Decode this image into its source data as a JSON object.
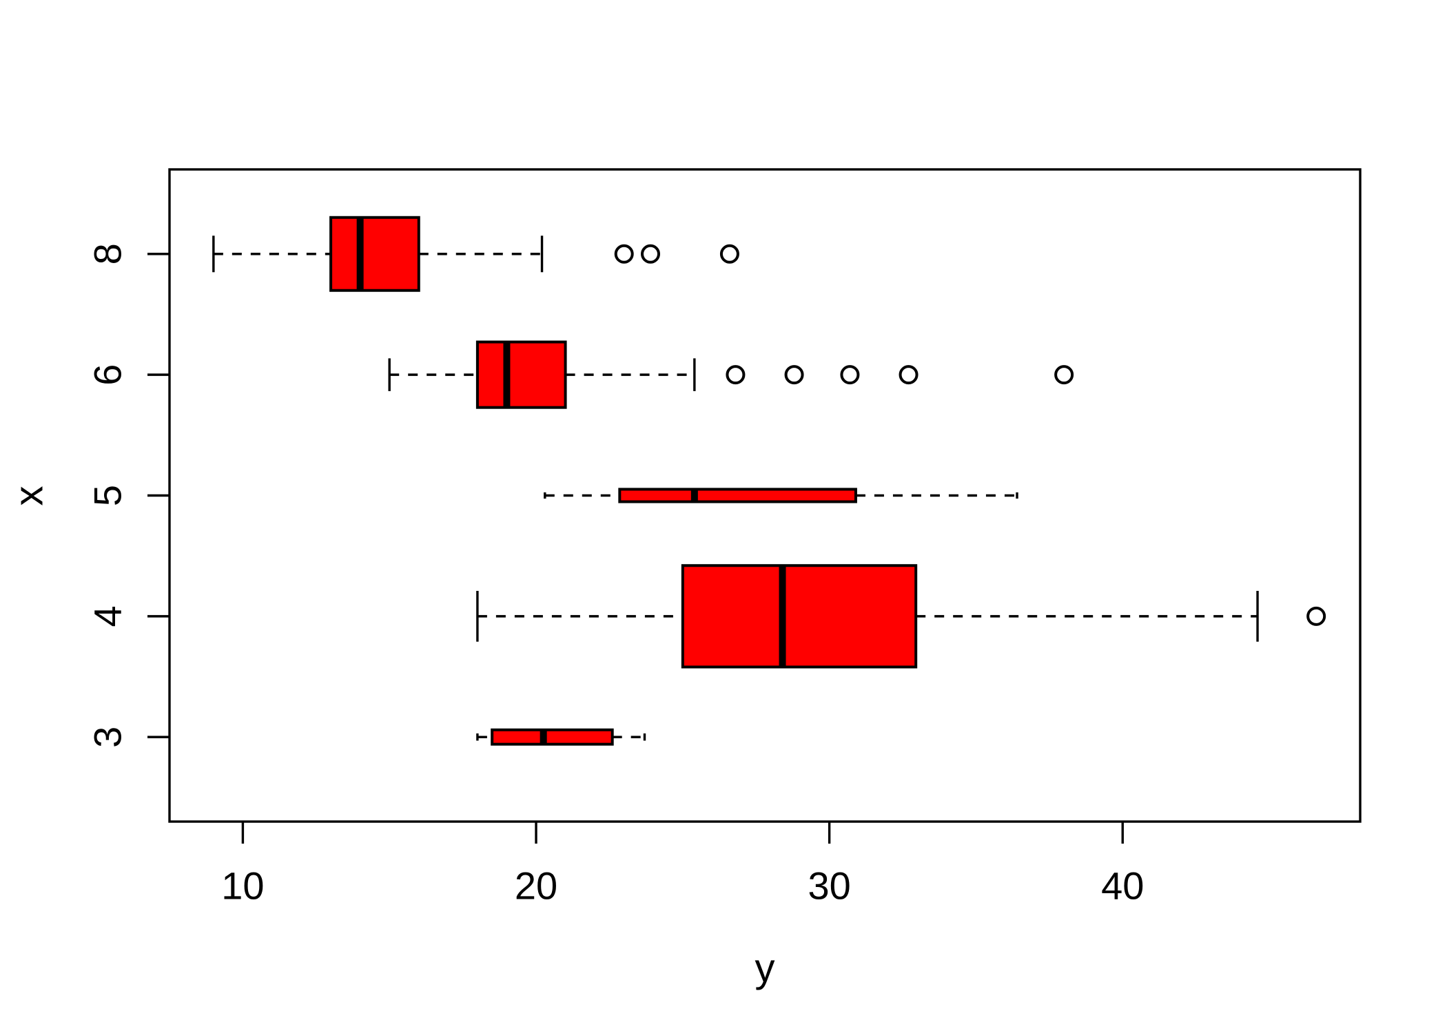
{
  "figure": {
    "background": "#FFFFFF",
    "foreground": "#000000"
  },
  "chart_data": {
    "type": "boxplot-horizontal",
    "title": "",
    "xlabel": "y",
    "ylabel": "x",
    "x_ticks": [
      10,
      20,
      30,
      40
    ],
    "xlim": [
      7.5,
      48.1
    ],
    "ylim": [
      0.3,
      5.7
    ],
    "grid": false,
    "legend": false,
    "box_fill": "#FF0000",
    "stroke_color": "#000000",
    "varwidth": true,
    "widths_proportional_to_sqrt_n": true,
    "categories": [
      "3",
      "4",
      "5",
      "6",
      "8"
    ],
    "groups": [
      {
        "label": "3",
        "n": 4,
        "whisker_low": 18.0,
        "q1": 18.5,
        "median": 20.25,
        "q3": 22.6,
        "whisker_high": 23.7,
        "outliers": []
      },
      {
        "label": "4",
        "n": 199,
        "whisker_low": 18.0,
        "q1": 25.0,
        "median": 28.4,
        "q3": 32.95,
        "whisker_high": 44.6,
        "outliers": [
          46.6
        ]
      },
      {
        "label": "5",
        "n": 3,
        "whisker_low": 20.3,
        "q1": 22.85,
        "median": 25.4,
        "q3": 30.9,
        "whisker_high": 36.4,
        "outliers": []
      },
      {
        "label": "6",
        "n": 83,
        "whisker_low": 15.0,
        "q1": 18.0,
        "median": 19.0,
        "q3": 21.0,
        "whisker_high": 25.4,
        "outliers": [
          26.8,
          28.8,
          30.7,
          32.7,
          38.0
        ]
      },
      {
        "label": "8",
        "n": 103,
        "whisker_low": 9.0,
        "q1": 13.0,
        "median": 14.0,
        "q3": 16.0,
        "whisker_high": 20.2,
        "outliers": [
          23.0,
          23.9,
          26.6
        ]
      }
    ]
  }
}
